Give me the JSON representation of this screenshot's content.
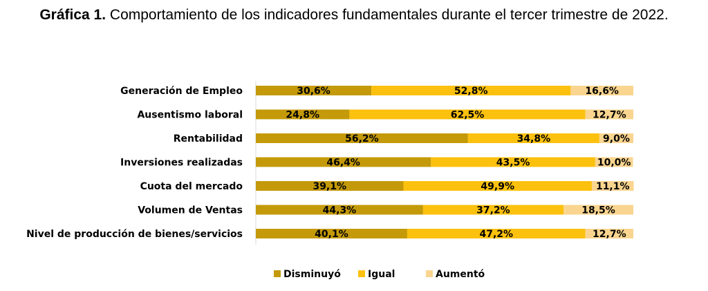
{
  "chart_data": {
    "type": "bar",
    "stacked": true,
    "orientation": "horizontal",
    "title_lead": "Gráfica 1.",
    "title_rest": " Comportamiento de los indicadores fundamentales durante el tercer trimestre de 2022.",
    "categories": [
      "Generación de Empleo",
      "Ausentismo laboral",
      "Rentabilidad",
      "Inversiones realizadas",
      "Cuota del mercado",
      "Volumen de Ventas",
      "Nivel de producción de bienes/servicios"
    ],
    "series": [
      {
        "name": "Disminuyó",
        "color": "#c49a0a",
        "values": [
          30.6,
          24.8,
          56.2,
          46.4,
          39.1,
          44.3,
          40.1
        ],
        "labels": [
          "30,6%",
          "24,8%",
          "56,2%",
          "46,4%",
          "39,1%",
          "44,3%",
          "40,1%"
        ]
      },
      {
        "name": "Igual",
        "color": "#fcc10e",
        "values": [
          52.8,
          62.5,
          34.8,
          43.5,
          49.9,
          37.2,
          47.2
        ],
        "labels": [
          "52,8%",
          "62,5%",
          "34,8%",
          "43,5%",
          "49,9%",
          "37,2%",
          "47,2%"
        ]
      },
      {
        "name": "Aumentó",
        "color": "#fad58f",
        "values": [
          16.6,
          12.7,
          9.0,
          10.0,
          11.1,
          18.5,
          12.7
        ],
        "labels": [
          "16,6%",
          "12,7%",
          "9,0%",
          "10,0%",
          "11,1%",
          "18,5%",
          "12,7%"
        ]
      }
    ],
    "xlim": [
      0,
      100
    ],
    "legend_position": "bottom"
  }
}
